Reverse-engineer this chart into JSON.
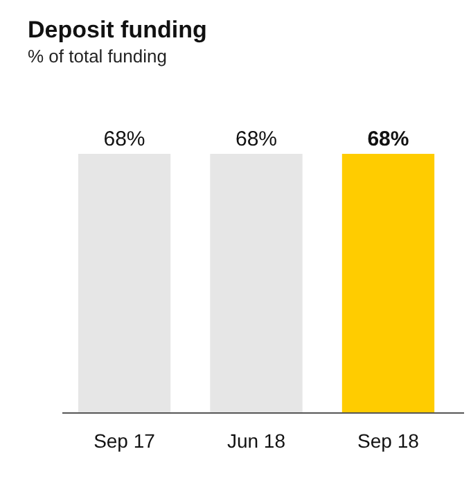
{
  "chart_data": {
    "type": "bar",
    "title": "Deposit funding",
    "subtitle": "% of total funding",
    "categories": [
      "Sep 17",
      "Jun 18",
      "Sep 18"
    ],
    "values": [
      68,
      68,
      68
    ],
    "colors": [
      "#e6e6e6",
      "#e6e6e6",
      "#ffcc00"
    ],
    "value_labels": [
      "68%",
      "68%",
      "68%"
    ]
  }
}
